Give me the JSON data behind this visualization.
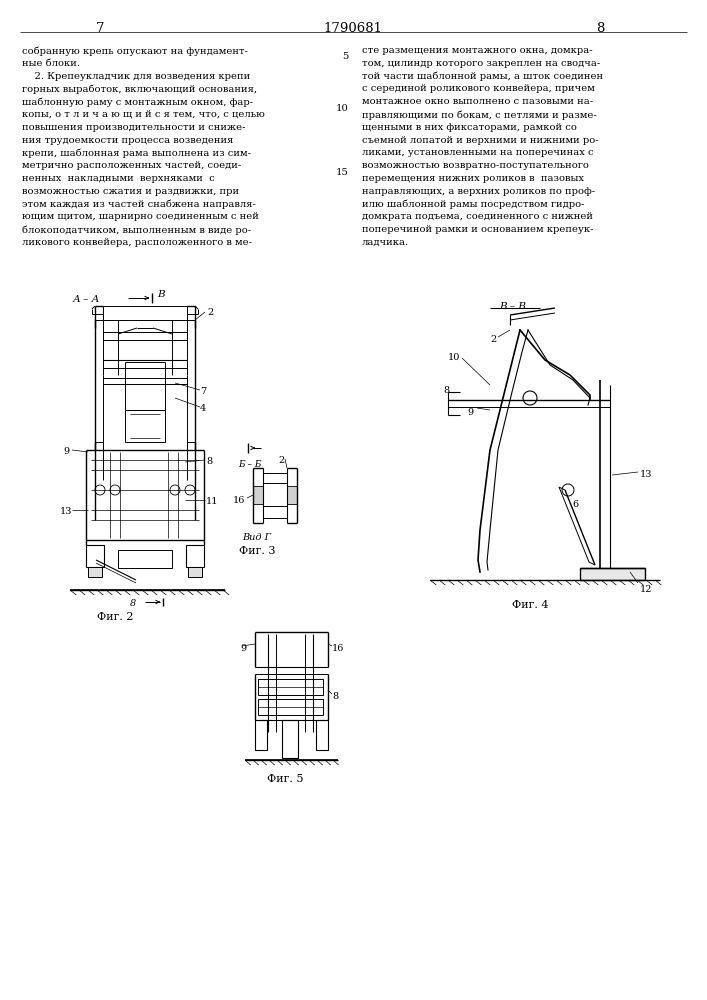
{
  "page_number_left": "7",
  "patent_number": "1790681",
  "page_number_right": "8",
  "text_left": "собранную крепь опускают на фундамент-\nные блоки.\n    2. Крепеукладчик для возведения крепи\nгорных выработок, включающий основания,\nшаблонную раму с монтажным окном, фар-\nкопы, о т л и ч а ю щ и й с я тем, что, с целью\nповышения производительности и сниже-\nния трудоемкости процесса возведения\nкрепи, шаблонная рама выполнена из сим-\nметрично расположенных частей, соеди-\nненных  накладными  верхняками  с\nвозможностью сжатия и раздвижки, при\nэтом каждая из частей снабжена направля-\nющим щитом, шарнирно соединенным с ней\nблокоподатчиком, выполненным в виде ро-\nликового конвейера, расположенного в ме-",
  "text_right": "сте размещения монтажного окна, домкра-\nтом, цилиндр которого закреплен на сводча-\nтой части шаблонной рамы, а шток соединен\nс серединой роликового конвейера, причем\nмонтажное окно выполнено с пазовыми на-\nправляющими по бокам, с петлями и разме-\nщенными в них фиксаторами, рамкой со\nсъемной лопатой и верхними и нижними ро-\nликами, установленными на поперечинах с\nвозможностью возвратно-поступательного\nперемещения нижних роликов в  пазовых\nнаправляющих, а верхних роликов по проф-\nилю шаблонной рамы посредством гидро-\nдомкрата подъема, соединенного с нижней\nпоперечиной рамки и основанием крепеук-\nладчика.",
  "bg_color": "#ffffff",
  "text_color": "#000000",
  "line_color": "#000000",
  "font_size_text": 7.2,
  "font_size_label": 8.0,
  "font_size_page": 9.5,
  "font_size_num": 7.0
}
